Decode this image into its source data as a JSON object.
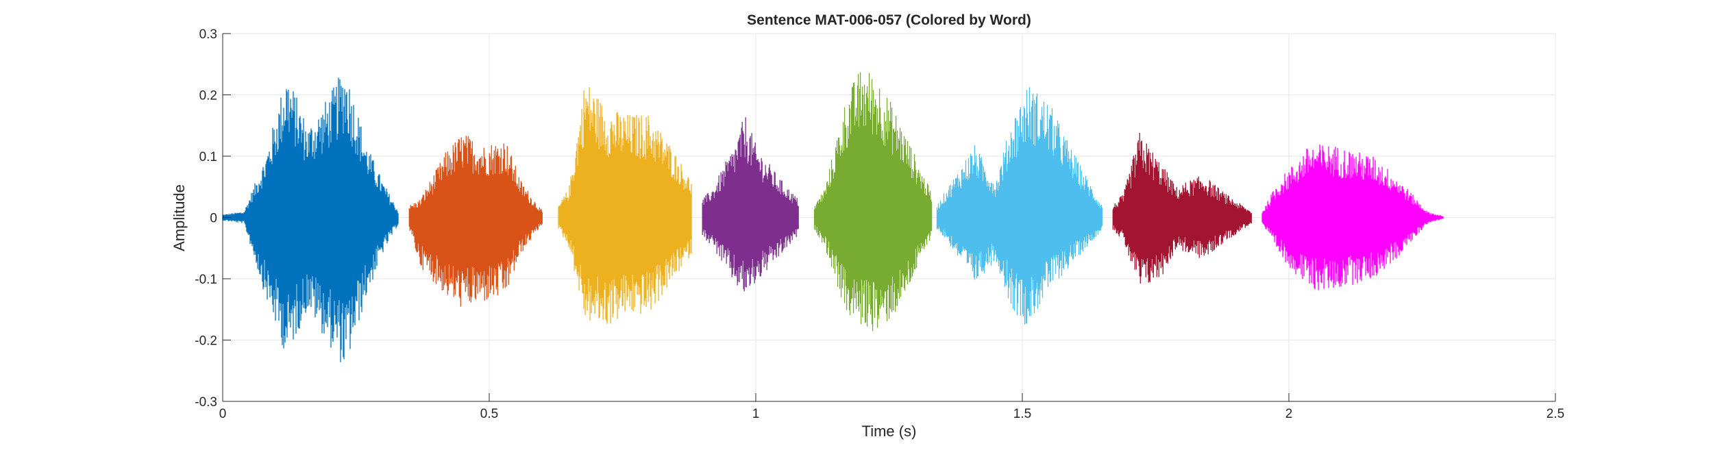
{
  "chart_data": {
    "type": "line",
    "title": "Sentence MAT-006-057 (Colored by Word)",
    "xlabel": "Time (s)",
    "ylabel": "Amplitude",
    "xlim": [
      0,
      2.5
    ],
    "ylim": [
      -0.3,
      0.3
    ],
    "xticks": [
      0,
      0.5,
      1,
      1.5,
      2,
      2.5
    ],
    "xtick_labels": [
      "0",
      "0.5",
      "1",
      "1.5",
      "2",
      "2.5"
    ],
    "yticks": [
      -0.3,
      -0.2,
      -0.1,
      0,
      0.1,
      0.2,
      0.3
    ],
    "ytick_labels": [
      "-0.3",
      "-0.2",
      "-0.1",
      "0",
      "0.1",
      "0.2",
      "0.3"
    ],
    "grid": true,
    "series": [
      {
        "color": "#0072BD",
        "x": [
          0.0,
          0.04,
          0.08,
          0.12,
          0.16,
          0.2,
          0.23,
          0.27,
          0.3,
          0.33
        ],
        "y_max": [
          0.005,
          0.01,
          0.1,
          0.24,
          0.15,
          0.2,
          0.25,
          0.12,
          0.06,
          0.01
        ],
        "y_min": [
          -0.005,
          -0.01,
          -0.13,
          -0.23,
          -0.15,
          -0.21,
          -0.25,
          -0.13,
          -0.06,
          -0.01
        ]
      },
      {
        "color": "#D95319",
        "x": [
          0.35,
          0.37,
          0.42,
          0.45,
          0.49,
          0.53,
          0.56,
          0.6
        ],
        "y_max": [
          0.02,
          0.03,
          0.11,
          0.14,
          0.12,
          0.13,
          0.06,
          0.01
        ],
        "y_min": [
          -0.02,
          -0.08,
          -0.13,
          -0.15,
          -0.14,
          -0.13,
          -0.06,
          -0.01
        ]
      },
      {
        "color": "#EDB120",
        "x": [
          0.63,
          0.65,
          0.68,
          0.72,
          0.76,
          0.8,
          0.84,
          0.88
        ],
        "y_max": [
          0.02,
          0.05,
          0.23,
          0.18,
          0.17,
          0.17,
          0.12,
          0.06
        ],
        "y_min": [
          -0.02,
          -0.05,
          -0.17,
          -0.18,
          -0.16,
          -0.16,
          -0.11,
          -0.06
        ]
      },
      {
        "color": "#7E2F8E",
        "x": [
          0.9,
          0.92,
          0.96,
          0.98,
          1.0,
          1.04,
          1.08
        ],
        "y_max": [
          0.03,
          0.05,
          0.12,
          0.17,
          0.12,
          0.07,
          0.03
        ],
        "y_min": [
          -0.03,
          -0.05,
          -0.11,
          -0.13,
          -0.11,
          -0.07,
          -0.03
        ]
      },
      {
        "color": "#77AC30",
        "x": [
          1.11,
          1.13,
          1.17,
          1.2,
          1.23,
          1.27,
          1.3,
          1.33
        ],
        "y_max": [
          0.02,
          0.05,
          0.2,
          0.25,
          0.23,
          0.16,
          0.1,
          0.04
        ],
        "y_min": [
          -0.02,
          -0.05,
          -0.16,
          -0.18,
          -0.19,
          -0.15,
          -0.09,
          -0.03
        ]
      },
      {
        "color": "#4DBEEE",
        "x": [
          1.34,
          1.36,
          1.41,
          1.45,
          1.48,
          1.51,
          1.55,
          1.6,
          1.65
        ],
        "y_max": [
          0.02,
          0.05,
          0.12,
          0.06,
          0.16,
          0.22,
          0.19,
          0.1,
          0.02
        ],
        "y_min": [
          -0.02,
          -0.04,
          -0.11,
          -0.07,
          -0.15,
          -0.18,
          -0.12,
          -0.07,
          -0.02
        ]
      },
      {
        "color": "#A2142F",
        "x": [
          1.67,
          1.69,
          1.72,
          1.76,
          1.79,
          1.81,
          1.84,
          1.88,
          1.93
        ],
        "y_max": [
          0.02,
          0.04,
          0.14,
          0.09,
          0.05,
          0.06,
          0.07,
          0.04,
          0.01
        ],
        "y_min": [
          -0.02,
          -0.04,
          -0.12,
          -0.1,
          -0.05,
          -0.06,
          -0.07,
          -0.04,
          -0.01
        ]
      },
      {
        "color": "#FF00FF",
        "x": [
          1.95,
          1.98,
          2.04,
          2.08,
          2.12,
          2.16,
          2.2,
          2.23,
          2.26,
          2.29
        ],
        "y_max": [
          0.01,
          0.06,
          0.12,
          0.12,
          0.11,
          0.1,
          0.07,
          0.04,
          0.01,
          0.002
        ],
        "y_min": [
          -0.01,
          -0.06,
          -0.12,
          -0.12,
          -0.11,
          -0.1,
          -0.07,
          -0.04,
          -0.01,
          -0.002
        ]
      }
    ]
  }
}
